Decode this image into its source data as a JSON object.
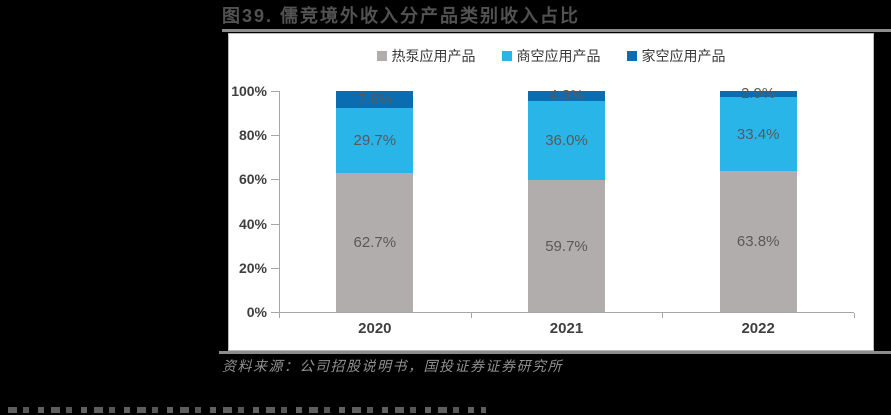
{
  "page": {
    "title": "图39. 儒竞境外收入分产品类别收入占比",
    "source_note": "资料来源：公司招股说明书，国投证券证券研究所"
  },
  "chart_data": {
    "type": "bar",
    "stacked": true,
    "percent_stacked": true,
    "title": "图39. 儒竞境外收入分产品类别收入占比",
    "categories": [
      "2020",
      "2021",
      "2022"
    ],
    "series": [
      {
        "name": "热泵应用产品",
        "color": "#b1adac",
        "values": [
          62.7,
          59.7,
          63.8
        ]
      },
      {
        "name": "商空应用产品",
        "color": "#2ab5e8",
        "values": [
          29.7,
          36.0,
          33.4
        ]
      },
      {
        "name": "家空应用产品",
        "color": "#0a6db1",
        "values": [
          7.6,
          4.3,
          2.9
        ]
      }
    ],
    "value_label_suffix": "%",
    "value_label_color": "#595959",
    "y_ticks": [
      "0%",
      "20%",
      "40%",
      "60%",
      "80%",
      "100%"
    ],
    "ylim": [
      0,
      100
    ],
    "legend_position": "top",
    "gridlines": false,
    "plot_background": "#ffffff"
  }
}
